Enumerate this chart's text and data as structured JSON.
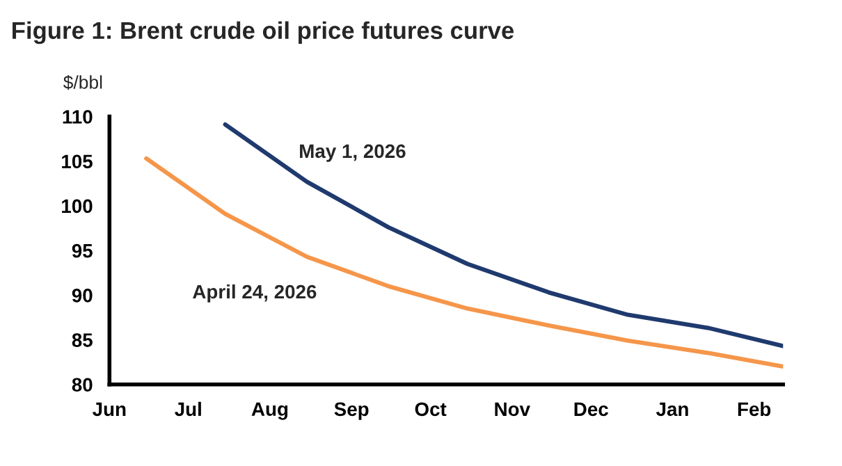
{
  "chart_data": {
    "type": "line",
    "title": "Figure 1: Brent crude oil price futures curve",
    "ylabel": "$/bbl",
    "xlim": [
      "2026-06-01",
      "2027-02-12"
    ],
    "xticks": [
      {
        "value": "2026-06-01",
        "label": "Jun"
      },
      {
        "value": "2026-07-01",
        "label": "Jul"
      },
      {
        "value": "2026-08-01",
        "label": "Aug"
      },
      {
        "value": "2026-09-01",
        "label": "Sep"
      },
      {
        "value": "2026-10-01",
        "label": "Oct"
      },
      {
        "value": "2026-11-01",
        "label": "Nov"
      },
      {
        "value": "2026-12-01",
        "label": "Dec"
      },
      {
        "value": "2027-01-01",
        "label": "Jan"
      },
      {
        "value": "2027-02-01",
        "label": "Feb"
      }
    ],
    "ylim": [
      80,
      110
    ],
    "yticks": [
      80,
      85,
      90,
      95,
      100,
      105,
      110
    ],
    "grid": false,
    "legend": false,
    "marker": "none",
    "line_style": "solid",
    "series": [
      {
        "name": "May 1, 2026",
        "color": "#1f3a6e",
        "x": [
          "2026-07-15",
          "2026-08-15",
          "2026-09-15",
          "2026-10-15",
          "2026-11-15",
          "2026-12-15",
          "2027-01-15",
          "2027-02-12"
        ],
        "values": [
          109.1,
          102.7,
          97.6,
          93.5,
          90.3,
          87.8,
          86.3,
          84.3
        ]
      },
      {
        "name": "April 24, 2026",
        "color": "#f5964a",
        "x": [
          "2026-06-15",
          "2026-07-15",
          "2026-08-15",
          "2026-09-15",
          "2026-10-15",
          "2026-11-15",
          "2026-12-15",
          "2027-01-15",
          "2027-02-12"
        ],
        "values": [
          105.3,
          99.1,
          94.3,
          91.0,
          88.5,
          86.6,
          84.9,
          83.5,
          82.0
        ]
      }
    ]
  }
}
